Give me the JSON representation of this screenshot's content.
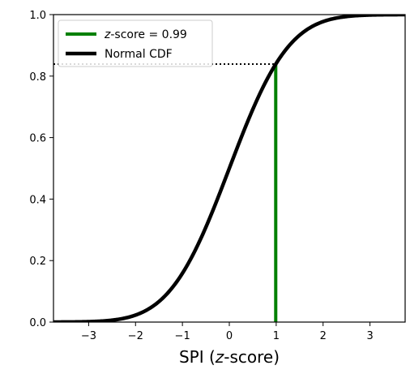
{
  "chart_data": {
    "type": "line",
    "title": "",
    "xlabel_parts": [
      "SPI (",
      "z",
      "-score)"
    ],
    "ylabel": "",
    "xlim": [
      -3.75,
      3.75
    ],
    "ylim": [
      0,
      1
    ],
    "xticks": [
      -3,
      -2,
      -1,
      0,
      1,
      2,
      3
    ],
    "xtick_labels": [
      "−3",
      "−2",
      "−1",
      "0",
      "1",
      "2",
      "3"
    ],
    "yticks": [
      0.0,
      0.2,
      0.4,
      0.6,
      0.8,
      1.0
    ],
    "ytick_labels": [
      "0.0",
      "0.2",
      "0.4",
      "0.6",
      "0.8",
      "1.0"
    ],
    "grid": false,
    "legend_position": "top-left",
    "series": [
      {
        "name": "Normal CDF",
        "kind": "curve",
        "function": "standard normal CDF",
        "color": "#000000"
      },
      {
        "name": "z-score = 0.99",
        "name_parts": [
          "z",
          "-score = 0.99"
        ],
        "kind": "vertical_line",
        "x": 0.99,
        "y_from": 0,
        "y_to": 0.839,
        "color": "#008000"
      }
    ],
    "annotations": [
      {
        "kind": "horizontal_dotted_line",
        "y": 0.839,
        "x_from": -3.75,
        "x_to": 0.99,
        "color": "#000000"
      }
    ]
  }
}
